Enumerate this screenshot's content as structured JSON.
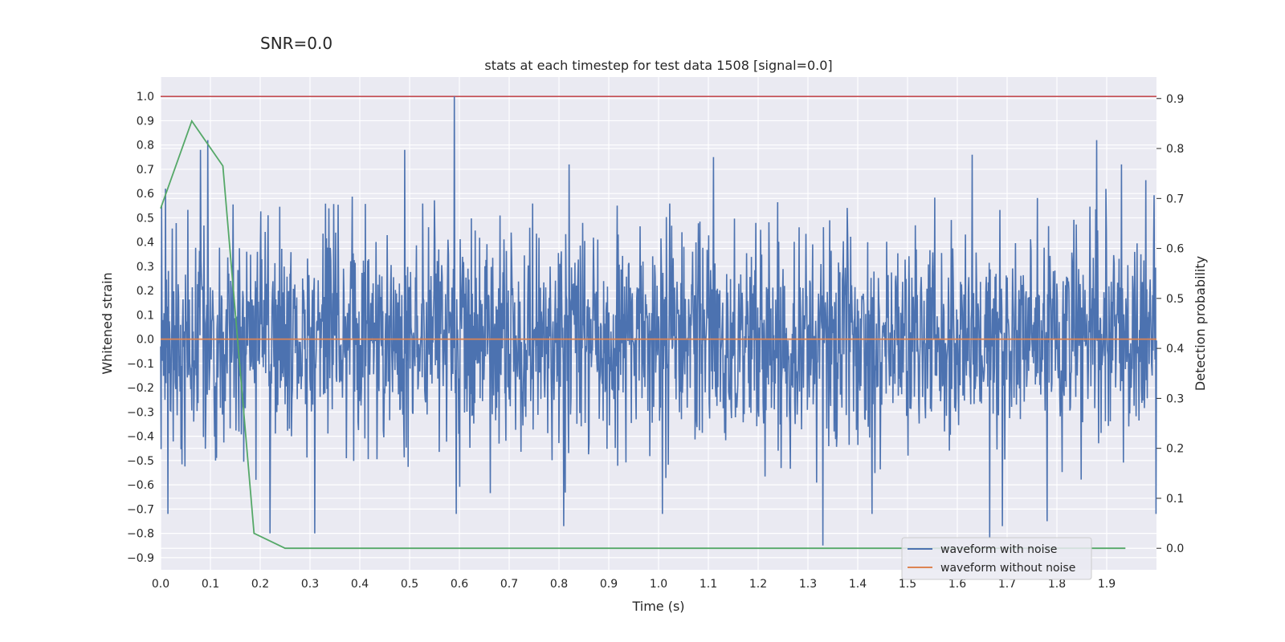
{
  "chart_data": {
    "type": "line",
    "suptitle": "SNR=0.0",
    "title": "stats at each timestep for test data 1508 [signal=0.0]",
    "xlabel": "Time (s)",
    "ylabel": "Whitened strain",
    "y2label": "Detection probability",
    "xlim": [
      0.0,
      2.0
    ],
    "ylim": [
      -0.95,
      1.08
    ],
    "y2lim": [
      -0.043,
      0.943
    ],
    "xticks": [
      "0.0",
      "0.1",
      "0.2",
      "0.3",
      "0.4",
      "0.5",
      "0.6",
      "0.7",
      "0.8",
      "0.9",
      "1.0",
      "1.1",
      "1.2",
      "1.3",
      "1.4",
      "1.5",
      "1.6",
      "1.7",
      "1.8",
      "1.9"
    ],
    "yticks": [
      "1.0",
      "0.9",
      "0.8",
      "0.7",
      "0.6",
      "0.5",
      "0.4",
      "0.3",
      "0.2",
      "0.1",
      "0.0",
      "−0.1",
      "−0.2",
      "−0.3",
      "−0.4",
      "−0.5",
      "−0.6",
      "−0.7",
      "−0.8",
      "−0.9"
    ],
    "y2ticks": [
      "0.9",
      "0.8",
      "0.7",
      "0.6",
      "0.5",
      "0.4",
      "0.3",
      "0.2",
      "0.1",
      "0.0"
    ],
    "grid": true,
    "legend_position": "lower-right",
    "noise_series": {
      "name": "waveform with noise",
      "color": "#4c72b0",
      "amplitude_std": 0.22,
      "spikes": [
        {
          "x": 0.01,
          "y": 0.62
        },
        {
          "x": 0.015,
          "y": -0.72
        },
        {
          "x": 0.08,
          "y": 0.78
        },
        {
          "x": 0.095,
          "y": 0.82
        },
        {
          "x": 0.11,
          "y": -0.5
        },
        {
          "x": 0.22,
          "y": -0.8
        },
        {
          "x": 0.31,
          "y": -0.8
        },
        {
          "x": 0.49,
          "y": 0.78
        },
        {
          "x": 0.59,
          "y": 1.0
        },
        {
          "x": 0.81,
          "y": -0.77
        },
        {
          "x": 1.11,
          "y": 0.75
        },
        {
          "x": 1.33,
          "y": -0.85
        },
        {
          "x": 1.63,
          "y": 0.76
        },
        {
          "x": 1.665,
          "y": -0.82
        },
        {
          "x": 1.69,
          "y": -0.77
        },
        {
          "x": 1.78,
          "y": -0.75
        },
        {
          "x": 1.88,
          "y": 0.82
        },
        {
          "x": 1.93,
          "y": 0.72
        }
      ]
    },
    "clean_series": {
      "name": "waveform without noise",
      "color": "#dd8452",
      "x": [
        0.0,
        2.0
      ],
      "y": [
        0.0,
        0.0
      ]
    },
    "probability_series": {
      "name": "Detection probability",
      "color": "#55a868",
      "x": [
        0.0,
        0.0625,
        0.125,
        0.1875,
        0.25,
        1.9375
      ],
      "y": [
        0.68,
        0.855,
        0.765,
        0.03,
        0.0,
        0.0
      ]
    },
    "threshold_line": {
      "color": "#c44e52",
      "y": 1.0
    }
  }
}
